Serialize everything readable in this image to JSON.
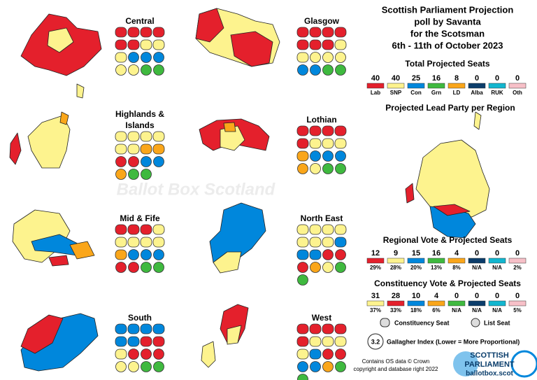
{
  "header": {
    "lines": [
      "Scottish Parliament Projection",
      "poll by Savanta",
      "for the Scotsman",
      "6th - 11th of October 2023"
    ]
  },
  "watermark": "Ballot Box Scotland",
  "total": {
    "title": "Total Projected Seats",
    "seats": [
      40,
      40,
      25,
      16,
      8,
      0,
      0,
      0
    ],
    "labels": [
      "Lab",
      "SNP",
      "Con",
      "Grn",
      "LD",
      "Alba",
      "RUK",
      "Oth"
    ],
    "colors": [
      "#e4202c",
      "#fdf38e",
      "#0087dc",
      "#3fb93f",
      "#faa61a",
      "#0b3d6b",
      "#12b6cf",
      "#f7c0c8"
    ]
  },
  "lead_title": "Projected Lead Party per Region",
  "regional": {
    "title": "Regional Vote & Projected Seats",
    "seats": [
      12,
      9,
      15,
      16,
      4,
      0,
      0,
      0
    ],
    "shares": [
      "29%",
      "28%",
      "20%",
      "13%",
      "8%",
      "N/A",
      "N/A",
      "2%"
    ],
    "colors": [
      "#e4202c",
      "#fdf38e",
      "#0087dc",
      "#3fb93f",
      "#faa61a",
      "#0b3d6b",
      "#12b6cf",
      "#f7c0c8"
    ]
  },
  "constituency": {
    "title": "Constituency Vote & Projected Seats",
    "seats": [
      31,
      28,
      10,
      4,
      0,
      0,
      0,
      0
    ],
    "shares": [
      "37%",
      "33%",
      "18%",
      "6%",
      "N/A",
      "N/A",
      "N/A",
      "5%"
    ],
    "colors": [
      "#fdf38e",
      "#e4202c",
      "#0087dc",
      "#faa61a",
      "#3fb93f",
      "#0b3d6b",
      "#12b6cf",
      "#f7c0c8"
    ]
  },
  "legend": {
    "constituency": "Constituency Seat",
    "list": "List Seat"
  },
  "gallagher": {
    "value": "3.2",
    "label": "Gallagher Index (Lower = More Proportional)"
  },
  "footer": [
    "Contains OS data © Crown",
    "copyright and database right 2022"
  ],
  "logo": [
    "SCOTTISH",
    "PARLIAMENT",
    "ballotbox.scot"
  ],
  "regions": [
    {
      "name": [
        "Central"
      ],
      "constituency": [
        "#e4202c",
        "#e4202c",
        "#e4202c",
        "#e4202c",
        "#e4202c",
        "#e4202c",
        "#fdf38e",
        "#fdf38e",
        "#fdf38e"
      ],
      "list": [
        "#0087dc",
        "#0087dc",
        "#0087dc",
        "#fdf38e",
        "#fdf38e",
        "#3fb93f",
        "#3fb93f"
      ]
    },
    {
      "name": [
        "Glasgow"
      ],
      "constituency": [
        "#e4202c",
        "#e4202c",
        "#e4202c",
        "#e4202c",
        "#e4202c",
        "#e4202c",
        "#e4202c",
        "#fdf38e",
        "#fdf38e"
      ],
      "list": [
        "#fdf38e",
        "#fdf38e",
        "#fdf38e",
        "#0087dc",
        "#0087dc",
        "#3fb93f",
        "#3fb93f"
      ]
    },
    {
      "name": [
        "Highlands &",
        "Islands"
      ],
      "constituency": [
        "#fdf38e",
        "#fdf38e",
        "#fdf38e",
        "#fdf38e",
        "#fdf38e",
        "#fdf38e",
        "#faa61a",
        "#faa61a"
      ],
      "list": [
        "#e4202c",
        "#e4202c",
        "#0087dc",
        "#0087dc",
        "#faa61a",
        "#3fb93f",
        "#3fb93f"
      ]
    },
    {
      "name": [
        "Lothian"
      ],
      "constituency": [
        "#e4202c",
        "#e4202c",
        "#e4202c",
        "#e4202c",
        "#e4202c",
        "#fdf38e",
        "#fdf38e",
        "#fdf38e",
        "#faa61a"
      ],
      "list": [
        "#0087dc",
        "#0087dc",
        "#0087dc",
        "#faa61a",
        "#fdf38e",
        "#3fb93f",
        "#3fb93f"
      ]
    },
    {
      "name": [
        "Mid & Fife"
      ],
      "constituency": [
        "#e4202c",
        "#e4202c",
        "#e4202c",
        "#fdf38e",
        "#fdf38e",
        "#fdf38e",
        "#fdf38e",
        "#fdf38e",
        "#faa61a"
      ],
      "list": [
        "#0087dc",
        "#0087dc",
        "#0087dc",
        "#e4202c",
        "#e4202c",
        "#3fb93f",
        "#3fb93f"
      ]
    },
    {
      "name": [
        "North East"
      ],
      "constituency": [
        "#fdf38e",
        "#fdf38e",
        "#fdf38e",
        "#fdf38e",
        "#fdf38e",
        "#fdf38e",
        "#fdf38e",
        "#0087dc",
        "#0087dc",
        "#0087dc"
      ],
      "list": [
        "#e4202c",
        "#e4202c",
        "#e4202c",
        "#faa61a",
        "#fdf38e",
        "#3fb93f",
        "#3fb93f"
      ]
    },
    {
      "name": [
        "South"
      ],
      "constituency": [
        "#0087dc",
        "#0087dc",
        "#0087dc",
        "#0087dc",
        "#0087dc",
        "#0087dc",
        "#e4202c",
        "#e4202c",
        "#fdf38e"
      ],
      "list": [
        "#e4202c",
        "#e4202c",
        "#e4202c",
        "#fdf38e",
        "#fdf38e",
        "#3fb93f",
        "#3fb93f"
      ]
    },
    {
      "name": [
        "West"
      ],
      "constituency": [
        "#e4202c",
        "#e4202c",
        "#e4202c",
        "#e4202c",
        "#e4202c",
        "#fdf38e",
        "#fdf38e",
        "#fdf38e",
        "#fdf38e",
        "#0087dc"
      ],
      "list": [
        "#e4202c",
        "#e4202c",
        "#0087dc",
        "#0087dc",
        "#faa61a",
        "#3fb93f",
        "#3fb93f"
      ]
    }
  ]
}
